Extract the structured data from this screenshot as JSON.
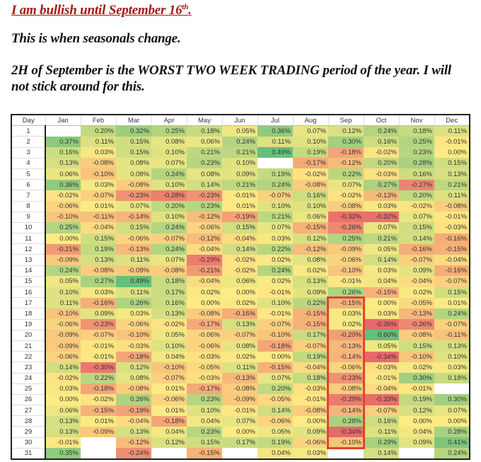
{
  "text": {
    "headline": "I am bullish until September 16",
    "headline_sup": "th",
    "headline_end": ".",
    "line2": "This is when seasonals change.",
    "line3": "2H of September is the WORST TWO WEEK TRADING period of the year. I will",
    "line4": "not stick around for this."
  },
  "colors": {
    "headline": "#a01c14",
    "negative": "#e8696b",
    "neutral": "#ffeb84",
    "positive": "#63be7b",
    "highlight_box": "#e0442e"
  },
  "table": {
    "day_header": "Day",
    "months": [
      "Jan",
      "Feb",
      "Mar",
      "Apr",
      "May",
      "Jun",
      "Jul",
      "Aug",
      "Sep",
      "Oct",
      "Nov",
      "Dec"
    ],
    "rows": [
      {
        "day": "1",
        "values": [
          "",
          "0.20%",
          "0.32%",
          "0.25%",
          "0.18%",
          "0.05%",
          "0.36%",
          "0.07%",
          "0.12%",
          "0.24%",
          "0.18%",
          "0.11%"
        ]
      },
      {
        "day": "2",
        "values": [
          "0.37%",
          "0.11%",
          "0.15%",
          "0.08%",
          "0.06%",
          "0.24%",
          "0.11%",
          "0.10%",
          "0.30%",
          "0.16%",
          "0.25%",
          "-0.01%"
        ]
      },
      {
        "day": "3",
        "values": [
          "0.16%",
          "0.03%",
          "0.15%",
          "0.10%",
          "0.21%",
          "0.21%",
          "0.49%",
          "0.19%",
          "-0.18%",
          "-0.02%",
          "0.23%",
          "0.00%"
        ]
      },
      {
        "day": "4",
        "values": [
          "0.13%",
          "-0.08%",
          "0.08%",
          "0.07%",
          "0.23%",
          "0.10%",
          "",
          "-0.17%",
          "-0.12%",
          "0.20%",
          "0.28%",
          "0.15%"
        ]
      },
      {
        "day": "5",
        "values": [
          "0.06%",
          "-0.10%",
          "0.08%",
          "0.24%",
          "0.08%",
          "0.09%",
          "0.19%",
          "-0.02%",
          "0.22%",
          "-0.03%",
          "0.16%",
          "0.13%"
        ]
      },
      {
        "day": "6",
        "values": [
          "0.36%",
          "0.03%",
          "-0.08%",
          "0.10%",
          "0.14%",
          "0.21%",
          "0.24%",
          "-0.08%",
          "0.07%",
          "0.27%",
          "-0.27%",
          "0.21%"
        ]
      },
      {
        "day": "7",
        "values": [
          "-0.02%",
          "-0.07%",
          "-0.23%",
          "-0.28%",
          "-0.23%",
          "-0.01%",
          "-0.07%",
          "0.16%",
          "-0.02%",
          "-0.13%",
          "0.20%",
          "0.11%"
        ]
      },
      {
        "day": "8",
        "values": [
          "-0.06%",
          "0.01%",
          "0.07%",
          "0.20%",
          "0.23%",
          "0.01%",
          "0.10%",
          "0.10%",
          "-0.08%",
          "0.03%",
          "-0.02%",
          "-0.08%"
        ]
      },
      {
        "day": "9",
        "values": [
          "-0.10%",
          "-0.11%",
          "-0.14%",
          "0.10%",
          "-0.12%",
          "-0.19%",
          "0.21%",
          "0.06%",
          "-0.32%",
          "-0.32%",
          "0.07%",
          "-0.01%"
        ]
      },
      {
        "day": "10",
        "values": [
          "0.25%",
          "-0.04%",
          "0.15%",
          "0.24%",
          "-0.06%",
          "0.15%",
          "0.07%",
          "-0.15%",
          "-0.26%",
          "0.07%",
          "0.15%",
          "-0.03%"
        ]
      },
      {
        "day": "11",
        "values": [
          "0.00%",
          "0.15%",
          "-0.06%",
          "-0.07%",
          "-0.12%",
          "-0.04%",
          "0.03%",
          "0.12%",
          "0.25%",
          "0.21%",
          "0.14%",
          "-0.16%"
        ]
      },
      {
        "day": "12",
        "values": [
          "-0.21%",
          "0.19%",
          "-0.13%",
          "0.24%",
          "-0.04%",
          "0.14%",
          "0.22%",
          "-0.12%",
          "-0.09%",
          "0.05%",
          "-0.16%",
          "-0.15%"
        ]
      },
      {
        "day": "13",
        "values": [
          "-0.09%",
          "0.13%",
          "0.11%",
          "0.07%",
          "-0.29%",
          "-0.02%",
          "0.02%",
          "0.08%",
          "-0.06%",
          "0.14%",
          "-0.07%",
          "-0.04%"
        ]
      },
      {
        "day": "14",
        "values": [
          "0.24%",
          "-0.08%",
          "-0.09%",
          "-0.08%",
          "-0.21%",
          "-0.02%",
          "0.24%",
          "0.02%",
          "-0.10%",
          "0.03%",
          "0.09%",
          "-0.16%"
        ]
      },
      {
        "day": "15",
        "values": [
          "0.05%",
          "0.27%",
          "0.49%",
          "0.18%",
          "-0.04%",
          "0.06%",
          "0.02%",
          "0.13%",
          "-0.01%",
          "0.04%",
          "-0.04%",
          "-0.07%"
        ]
      },
      {
        "day": "16",
        "values": [
          "0.10%",
          "0.03%",
          "0.11%",
          "0.17%",
          "0.02%",
          "0.00%",
          "-0.01%",
          "0.09%",
          "0.26%",
          "-0.15%",
          "0.02%",
          "0.15%"
        ]
      },
      {
        "day": "17",
        "values": [
          "0.11%",
          "-0.16%",
          "0.26%",
          "0.16%",
          "0.00%",
          "0.02%",
          "0.10%",
          "0.22%",
          "-0.15%",
          "0.00%",
          "-0.05%",
          "0.01%"
        ]
      },
      {
        "day": "18",
        "values": [
          "-0.10%",
          "0.09%",
          "0.03%",
          "0.13%",
          "-0.08%",
          "-0.16%",
          "-0.01%",
          "-0.15%",
          "0.03%",
          "0.03%",
          "-0.13%",
          "0.24%"
        ]
      },
      {
        "day": "19",
        "values": [
          "-0.06%",
          "-0.23%",
          "-0.06%",
          "-0.02%",
          "-0.17%",
          "0.13%",
          "-0.07%",
          "-0.15%",
          "0.02%",
          "-0.36%",
          "-0.26%",
          "-0.07%"
        ]
      },
      {
        "day": "20",
        "values": [
          "-0.09%",
          "-0.07%",
          "-0.10%",
          "0.05%",
          "-0.06%",
          "-0.07%",
          "-0.10%",
          "0.17%",
          "-0.20%",
          "0.60%",
          "-0.08%",
          "-0.11%"
        ]
      },
      {
        "day": "21",
        "values": [
          "-0.09%",
          "-0.01%",
          "-0.03%",
          "0.10%",
          "-0.06%",
          "0.08%",
          "-0.18%",
          "-0.07%",
          "-0.13%",
          "0.05%",
          "0.15%",
          "0.13%"
        ]
      },
      {
        "day": "22",
        "values": [
          "-0.06%",
          "-0.01%",
          "-0.18%",
          "0.04%",
          "-0.03%",
          "0.02%",
          "0.00%",
          "0.19%",
          "-0.14%",
          "-0.34%",
          "-0.10%",
          "0.10%"
        ]
      },
      {
        "day": "23",
        "values": [
          "0.14%",
          "-0.30%",
          "0.12%",
          "-0.10%",
          "-0.05%",
          "0.11%",
          "-0.15%",
          "-0.04%",
          "-0.06%",
          "-0.03%",
          "0.02%",
          "0.03%"
        ]
      },
      {
        "day": "24",
        "values": [
          "-0.02%",
          "0.22%",
          "0.08%",
          "-0.07%",
          "-0.03%",
          "-0.13%",
          "0.07%",
          "0.18%",
          "-0.23%",
          "-0.01%",
          "0.30%",
          "0.18%"
        ]
      },
      {
        "day": "25",
        "values": [
          "0.03%",
          "-0.18%",
          "-0.08%",
          "0.01%",
          "-0.17%",
          "-0.08%",
          "0.20%",
          "-0.03%",
          "-0.08%",
          "-0.04%",
          "-0.01%",
          ""
        ]
      },
      {
        "day": "26",
        "values": [
          "0.00%",
          "-0.02%",
          "0.26%",
          "-0.06%",
          "0.23%",
          "-0.09%",
          "-0.05%",
          "-0.01%",
          "-0.29%",
          "-0.33%",
          "0.19%",
          "0.30%"
        ]
      },
      {
        "day": "27",
        "values": [
          "0.06%",
          "-0.15%",
          "-0.19%",
          "0.01%",
          "0.10%",
          "-0.01%",
          "0.14%",
          "-0.08%",
          "-0.14%",
          "-0.07%",
          "0.12%",
          "0.07%"
        ]
      },
      {
        "day": "28",
        "values": [
          "0.13%",
          "0.01%",
          "-0.04%",
          "-0.18%",
          "0.04%",
          "0.07%",
          "-0.06%",
          "0.00%",
          "0.28%",
          "0.16%",
          "0.00%",
          "0.00%"
        ]
      },
      {
        "day": "29",
        "values": [
          "0.13%",
          "-0.09%",
          "0.13%",
          "0.04%",
          "0.23%",
          "0.00%",
          "0.05%",
          "0.09%",
          "-0.34%",
          "0.11%",
          "0.04%",
          "0.28%"
        ]
      },
      {
        "day": "30",
        "values": [
          "-0.01%",
          "",
          "-0.12%",
          "0.12%",
          "0.15%",
          "0.17%",
          "0.19%",
          "-0.06%",
          "-0.10%",
          "0.29%",
          "0.09%",
          "0.41%"
        ]
      },
      {
        "day": "31",
        "values": [
          "0.35%",
          "",
          "-0.24%",
          "",
          "-0.15%",
          "",
          "0.04%",
          "0.03%",
          "",
          "0.14%",
          "",
          "0.24%"
        ]
      }
    ],
    "highlight": {
      "month": "Sep",
      "from_day": 17,
      "to_day": 30
    }
  }
}
